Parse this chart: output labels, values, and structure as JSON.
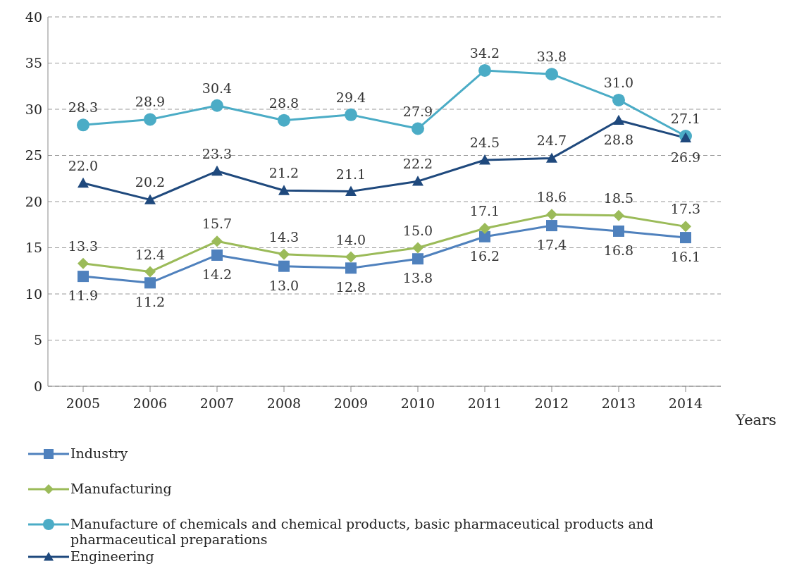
{
  "chart_data": {
    "type": "line",
    "xlabel": "Years",
    "categories": [
      "2005",
      "2006",
      "2007",
      "2008",
      "2009",
      "2010",
      "2011",
      "2012",
      "2013",
      "2014"
    ],
    "series": [
      {
        "name": "Industry",
        "color": "#4f81bd",
        "marker": "square",
        "values": [
          11.9,
          11.2,
          14.2,
          13.0,
          12.8,
          13.8,
          16.2,
          17.4,
          16.8,
          16.1
        ],
        "value_labels": [
          "11.9",
          "11.2",
          "14.2",
          "13.0",
          "12.8",
          "13.8",
          "16.2",
          "17.4",
          "16.8",
          "16.1"
        ]
      },
      {
        "name": "Manufacturing",
        "color": "#9bbb59",
        "marker": "diamond",
        "values": [
          13.3,
          12.4,
          15.7,
          14.3,
          14.0,
          15.0,
          17.1,
          18.6,
          18.5,
          17.3
        ],
        "value_labels": [
          "13.3",
          "12.4",
          "15.7",
          "14.3",
          "14.0",
          "15.0",
          "17.1",
          "18.6",
          "18.5",
          "17.3"
        ]
      },
      {
        "name": "Manufacture of chemicals and chemical products, basic pharmaceutical products and pharmaceutical preparations",
        "color": "#4bacc6",
        "marker": "circle",
        "values": [
          28.3,
          28.9,
          30.4,
          28.8,
          29.4,
          27.9,
          34.2,
          33.8,
          31.0,
          27.1
        ],
        "value_labels": [
          "28.3",
          "28.9",
          "30.4",
          "28.8",
          "29.4",
          "27.9",
          "34.2",
          "33.8",
          "31.0",
          "27.1"
        ]
      },
      {
        "name": "Engineering",
        "color": "#1f497d",
        "marker": "triangle",
        "values": [
          22.0,
          20.2,
          23.3,
          21.2,
          21.1,
          22.2,
          24.5,
          24.7,
          28.8,
          26.9
        ],
        "value_labels": [
          "22.0",
          "20.2",
          "23.3",
          "21.2",
          "21.1",
          "22.2",
          "24.5",
          "24.7",
          "28.8",
          "26.9"
        ]
      }
    ],
    "ylim": [
      0,
      40
    ],
    "yticks": [
      0,
      5,
      10,
      15,
      20,
      25,
      30,
      35,
      40
    ],
    "grid": "y",
    "legend": "bottom",
    "line_style": "solid"
  }
}
